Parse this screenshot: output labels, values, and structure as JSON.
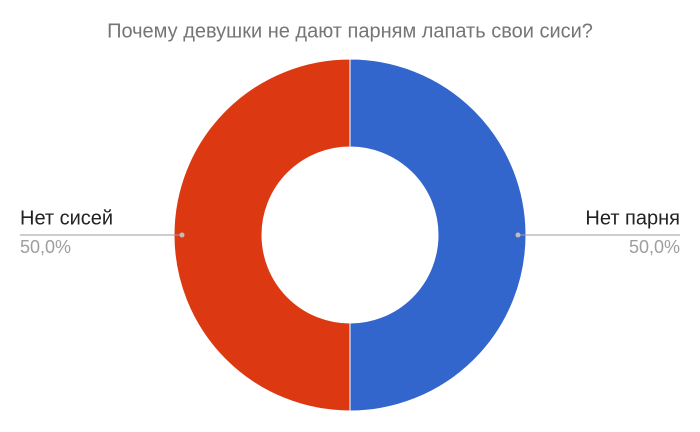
{
  "chart_data": {
    "type": "donut",
    "title": "Почему девушки не дают парням лапать свои сиси?",
    "categories": [
      "Нет парня",
      "Нет сисей"
    ],
    "values": [
      50,
      50
    ],
    "value_labels": [
      "50,0%",
      "50,0%"
    ],
    "colors": [
      "#3366cc",
      "#dc3912"
    ]
  }
}
